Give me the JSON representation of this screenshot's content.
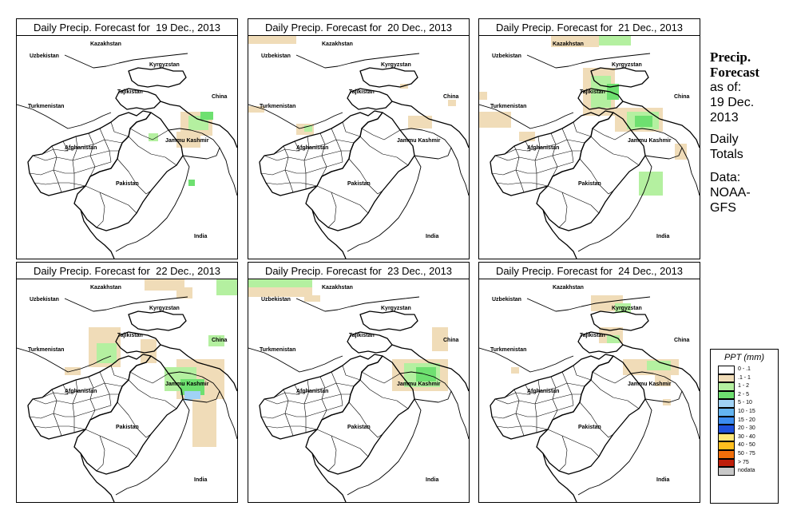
{
  "panels": [
    {
      "title": "Daily Precip. Forecast for  19 Dec., 2013"
    },
    {
      "title": "Daily Precip. Forecast for  20 Dec., 2013"
    },
    {
      "title": "Daily Precip. Forecast for  21 Dec., 2013"
    },
    {
      "title": "Daily Precip. Forecast for  22 Dec., 2013"
    },
    {
      "title": "Daily Precip. Forecast for  23 Dec., 2013"
    },
    {
      "title": "Daily Precip. Forecast for  24 Dec., 2013"
    }
  ],
  "map_labels": {
    "kazakhstan": "Kazakhstan",
    "uzbekistan": "Uzbekistan",
    "kyrgyzstan": "Kyrgyzstan",
    "tajikistan": "Tajikistan",
    "turkmenistan": "Turkmenistan",
    "china": "China",
    "afghanistan": "Afghanistan",
    "jammu_kashmir": "Jammu Kashmir",
    "pakistan": "Pakistan",
    "india": "India"
  },
  "sidebar": {
    "title_line1": "Precip.",
    "title_line2": "Forecast",
    "asof_line1": "as of:",
    "asof_line2": "19 Dec.",
    "asof_line3": "2013",
    "totals_line1": "Daily",
    "totals_line2": "Totals",
    "data_line1": "Data:",
    "data_line2": "NOAA-",
    "data_line3": "GFS"
  },
  "legend": {
    "title": "PPT (mm)",
    "items": [
      {
        "label": "0 - .1",
        "color": "#ffffff"
      },
      {
        "label": ".1 - 1",
        "color": "#f0dcb8"
      },
      {
        "label": "1 - 2",
        "color": "#b4f0a0"
      },
      {
        "label": "2 - 5",
        "color": "#6ee070"
      },
      {
        "label": "5 - 10",
        "color": "#a0d2f5"
      },
      {
        "label": "10 - 15",
        "color": "#64b4f0"
      },
      {
        "label": "15 - 20",
        "color": "#3c8cf0"
      },
      {
        "label": "20 - 30",
        "color": "#1e50dc"
      },
      {
        "label": "30 - 40",
        "color": "#ffe678"
      },
      {
        "label": "40 - 50",
        "color": "#ffbe1e"
      },
      {
        "label": "50 - 75",
        "color": "#f06e0a"
      },
      {
        "label": "> 75",
        "color": "#be1e0a"
      },
      {
        "label": "nodata",
        "color": "#c8c8c8"
      }
    ]
  }
}
